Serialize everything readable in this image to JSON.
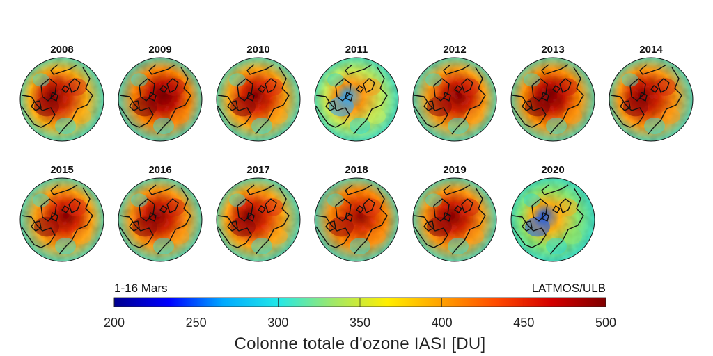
{
  "figure": {
    "period": "1-16 Mars",
    "credit": "LATMOS/ULB",
    "colorbar_title": "Colonne totale d'ozone IASI [DU]",
    "colorbar_ticks": [
      "200",
      "250",
      "300",
      "350",
      "400",
      "450",
      "500"
    ],
    "colorbar_range": [
      200,
      500
    ],
    "colormap": [
      "#00008f",
      "#0000ff",
      "#00aaff",
      "#22e8e8",
      "#9fe86a",
      "#ffee00",
      "#ffa000",
      "#ff4a00",
      "#d40000",
      "#800000"
    ]
  },
  "panels": [
    {
      "year": "2008",
      "state": "strong vortex over Greenland/Canada, high ozone",
      "colors": [
        "#ffb21a",
        "#d22a0f",
        "#8a0a08",
        "#33e0d8"
      ]
    },
    {
      "year": "2009",
      "state": "very high ozone, large dark red region",
      "colors": [
        "#ff8a10",
        "#c2180a",
        "#7a0606",
        "#33e0d8"
      ]
    },
    {
      "year": "2010",
      "state": "high ozone, central dark red core",
      "colors": [
        "#ffa81a",
        "#dc2c0c",
        "#8a0a08",
        "#33e0d8"
      ]
    },
    {
      "year": "2011",
      "state": "low ozone, blue vortex near pole",
      "colors": [
        "#c6ee5c",
        "#ff9a18",
        "#2aa6ff",
        "#2ed9d6"
      ]
    },
    {
      "year": "2012",
      "state": "high ozone over Siberia",
      "colors": [
        "#ffa11a",
        "#d2260c",
        "#8a0a08",
        "#33e0d8"
      ]
    },
    {
      "year": "2013",
      "state": "very high ozone over Eurasia",
      "colors": [
        "#ff9612",
        "#c81c0a",
        "#7a0606",
        "#3fe0cf"
      ]
    },
    {
      "year": "2014",
      "state": "high ozone around pole",
      "colors": [
        "#ff9c18",
        "#d2260c",
        "#8a0a08",
        "#33e0d8"
      ]
    },
    {
      "year": "2015",
      "state": "high ozone, dark red over Canada",
      "colors": [
        "#ffa51a",
        "#dc2c0c",
        "#8a0a08",
        "#33e0d8"
      ]
    },
    {
      "year": "2016",
      "state": "high ozone, some low area near Europe",
      "colors": [
        "#ff9c18",
        "#d2260c",
        "#8a0a08",
        "#33e0d8"
      ]
    },
    {
      "year": "2017",
      "state": "high ozone, dark red over Canada",
      "colors": [
        "#ffa81a",
        "#dc2c0c",
        "#8a0a08",
        "#33e0d8"
      ]
    },
    {
      "year": "2018",
      "state": "high ozone, orange and red",
      "colors": [
        "#ff9012",
        "#e03a0e",
        "#a01008",
        "#33e0d8"
      ]
    },
    {
      "year": "2019",
      "state": "high ozone, missing data near pole",
      "colors": [
        "#ff9c18",
        "#d2260c",
        "#8a0a08",
        "#33e0d8"
      ]
    },
    {
      "year": "2020",
      "state": "record low ozone, deep blue vortex",
      "colors": [
        "#8ee870",
        "#ffb21a",
        "#1a5cf0",
        "#2ed9d6"
      ]
    }
  ]
}
